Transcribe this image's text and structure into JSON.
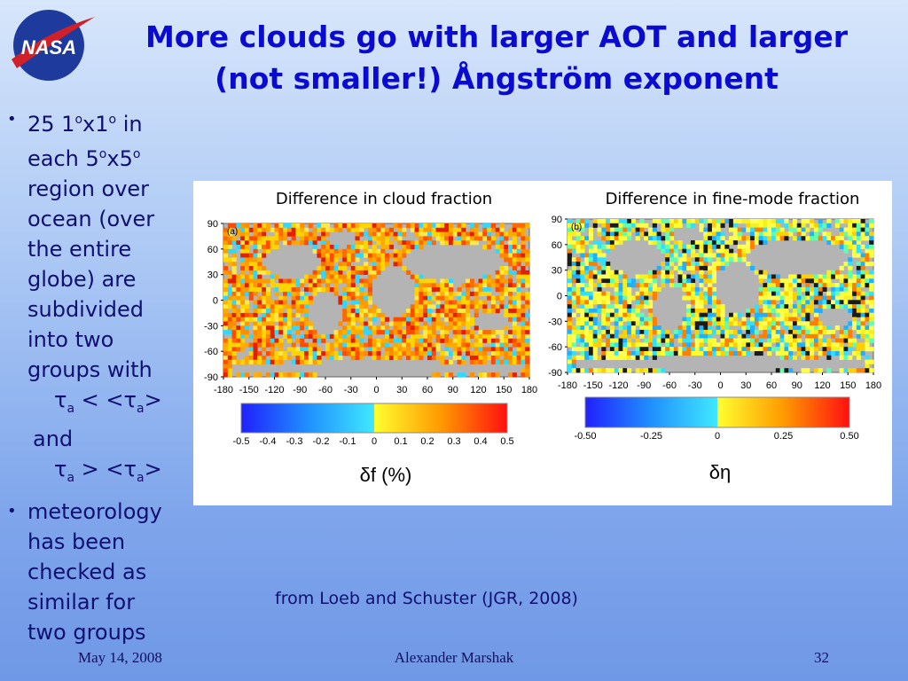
{
  "logo": "NASA",
  "title": [
    "More clouds go with larger AOT and larger",
    "(not smaller!) Ångström exponent"
  ],
  "bullets": [
    {
      "marker": "•",
      "lines": [
        [
          "25 1",
          "o",
          "x1",
          "o",
          " in"
        ],
        [
          "each 5",
          "o",
          "x5",
          "o"
        ],
        [
          "region over"
        ],
        [
          "ocean (over"
        ],
        [
          "the entire"
        ],
        [
          "globe) are"
        ],
        [
          "subdivided"
        ],
        [
          "into two"
        ],
        [
          "groups with"
        ]
      ],
      "conditions": [
        [
          "τ",
          "a",
          " < <τ",
          "a",
          ">"
        ],
        [
          "and"
        ],
        [
          "τ",
          "a",
          " > <τ",
          "a",
          ">"
        ]
      ]
    },
    {
      "marker": "•",
      "lines": [
        [
          "meteorology"
        ],
        [
          "has been"
        ],
        [
          "checked as"
        ],
        [
          "similar for"
        ],
        [
          "two groups"
        ]
      ]
    }
  ],
  "figure": {
    "panels": [
      {
        "caption": "Difference in cloud fraction",
        "label": "(a)",
        "lat_ticks": [
          "90",
          "60",
          "30",
          "0",
          "-30",
          "-60",
          "-90"
        ],
        "lon_ticks": [
          "-180",
          "-150",
          "-120",
          "-90",
          "-60",
          "-30",
          "0",
          "30",
          "60",
          "90",
          "120",
          "150",
          "180"
        ],
        "colorbar_ticks": [
          "-0.5",
          "-0.4",
          "-0.3",
          "-0.2",
          "-0.1",
          "0",
          "0.1",
          "0.2",
          "0.3",
          "0.4",
          "0.5"
        ],
        "colorbar_label": "δf (%)"
      },
      {
        "caption": "Difference in fine-mode fraction",
        "label": "(b)",
        "lat_ticks": [
          "90",
          "60",
          "30",
          "0",
          "-30",
          "-60",
          "-90"
        ],
        "lon_ticks": [
          "-180",
          "-150",
          "-120",
          "-90",
          "-60",
          "-30",
          "0",
          "30",
          "60",
          "90",
          "120",
          "150",
          "180"
        ],
        "colorbar_ticks": [
          "-0.50",
          "-0.25",
          "0",
          "0.25",
          "0.50"
        ],
        "colorbar_label": "δη"
      }
    ]
  },
  "source": "from Loeb and Schuster (JGR, 2008)",
  "footer": {
    "date": "May 14, 2008",
    "author": "Alexander Marshak",
    "page": "32"
  }
}
